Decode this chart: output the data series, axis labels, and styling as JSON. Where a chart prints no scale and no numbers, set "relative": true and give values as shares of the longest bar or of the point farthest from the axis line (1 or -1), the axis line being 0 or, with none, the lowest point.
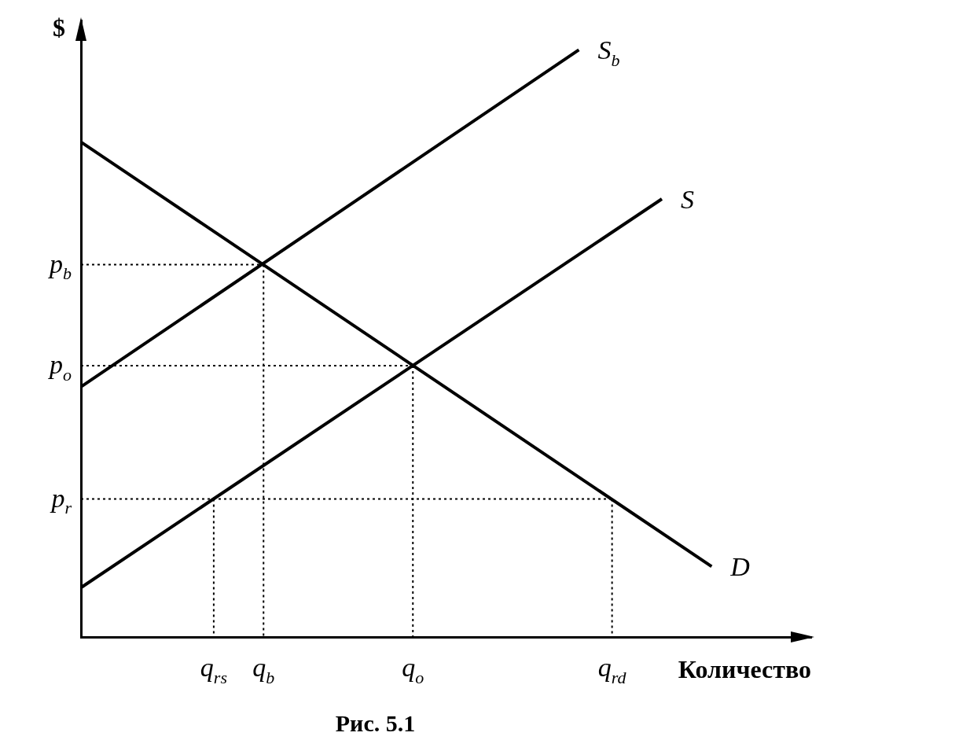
{
  "chart_data": {
    "type": "line",
    "relative": true,
    "xlabel": "Количество",
    "ylabel": "$",
    "legend": false,
    "grid": false,
    "marker": "none",
    "categories": [
      null,
      null,
      null,
      null,
      null,
      null,
      null,
      null,
      "q$_{rs}$",
      null,
      null,
      "q$_{b}$",
      null,
      null,
      null,
      null,
      null,
      null,
      null,
      null,
      "q$_{o}$",
      null,
      null,
      null,
      null,
      null,
      null,
      null,
      null,
      null,
      null,
      null,
      "q$_{rd}$",
      null,
      null,
      null,
      null,
      null,
      null,
      null,
      null,
      null,
      null,
      null,
      null
    ],
    "series": [
      {
        "name": "S$_{b}$",
        "color": "#000000",
        "line_style": "solid",
        "values": [
          0.426,
          null,
          null,
          null,
          null,
          null,
          null,
          null,
          null,
          null,
          null,
          null,
          null,
          null,
          null,
          null,
          null,
          null,
          null,
          null,
          null,
          null,
          null,
          null,
          null,
          null,
          null,
          null,
          null,
          null,
          1,
          null,
          null,
          null,
          null,
          null,
          null,
          null,
          null,
          null,
          null,
          null,
          null,
          null,
          null
        ]
      },
      {
        "name": "S",
        "color": "#000000",
        "line_style": "solid",
        "values": [
          0.084,
          null,
          null,
          null,
          null,
          null,
          null,
          null,
          null,
          null,
          null,
          null,
          null,
          null,
          null,
          null,
          null,
          null,
          null,
          null,
          null,
          null,
          null,
          null,
          null,
          null,
          null,
          null,
          null,
          null,
          null,
          null,
          null,
          null,
          null,
          0.746,
          null,
          null,
          null,
          null,
          null,
          null,
          null,
          null,
          null
        ]
      },
      {
        "name": "D",
        "color": "#000000",
        "line_style": "solid",
        "values": [
          0.843,
          null,
          null,
          null,
          null,
          null,
          null,
          null,
          null,
          null,
          null,
          null,
          null,
          null,
          null,
          null,
          null,
          null,
          null,
          null,
          null,
          null,
          null,
          null,
          null,
          null,
          null,
          null,
          null,
          null,
          null,
          null,
          null,
          null,
          null,
          null,
          null,
          null,
          0.12,
          null,
          null,
          null,
          null,
          null,
          null
        ]
      },
      {
        "name": "p$_{b}$",
        "color": "#000000",
        "line_style": "dotted",
        "values": [
          0.634,
          null,
          null,
          null,
          null,
          null,
          null,
          null,
          null,
          null,
          null,
          0.634,
          null,
          null,
          null,
          null,
          null,
          null,
          null,
          null,
          null,
          null,
          null,
          null,
          null,
          null,
          null,
          null,
          null,
          null,
          null,
          null,
          null,
          null,
          null,
          null,
          null,
          null,
          null,
          null,
          null,
          null,
          null,
          null,
          null
        ]
      },
      {
        "name": "p$_{o}$",
        "color": "#000000",
        "line_style": "dotted",
        "values": [
          0.462,
          null,
          null,
          null,
          null,
          null,
          null,
          null,
          null,
          null,
          null,
          null,
          null,
          null,
          null,
          null,
          null,
          null,
          null,
          null,
          0.462,
          null,
          null,
          null,
          null,
          null,
          null,
          null,
          null,
          null,
          null,
          null,
          null,
          null,
          null,
          null,
          null,
          null,
          null,
          null,
          null,
          null,
          null,
          null,
          null
        ]
      },
      {
        "name": "p$_{r}$",
        "color": "#000000",
        "line_style": "dotted",
        "values": [
          0.235,
          null,
          null,
          null,
          null,
          null,
          null,
          null,
          null,
          null,
          null,
          null,
          null,
          null,
          null,
          null,
          null,
          null,
          null,
          null,
          null,
          null,
          null,
          null,
          null,
          null,
          null,
          null,
          null,
          null,
          null,
          null,
          0.235,
          null,
          null,
          null,
          null,
          null,
          null,
          null,
          null,
          null,
          null,
          null,
          null
        ]
      },
      {
        "color": "#000000",
        "line_style": "dotted",
        "x": [
          "q$_{rs}$",
          "q$_{rs}$"
        ],
        "values": [
          0.235,
          0
        ]
      },
      {
        "color": "#000000",
        "line_style": "dotted",
        "x": [
          "q$_{b}$",
          "q$_{b}$"
        ],
        "values": [
          0.634,
          0
        ]
      },
      {
        "color": "#000000",
        "line_style": "dotted",
        "x": [
          "q$_{o}$",
          "q$_{o}$"
        ],
        "values": [
          0.462,
          0
        ]
      },
      {
        "color": "#000000",
        "line_style": "dotted",
        "x": [
          "q$_{rd}$",
          "q$_{rd}$"
        ],
        "values": [
          0.235,
          0
        ]
      }
    ],
    "annotations": [
      "Рис. 5.1"
    ]
  }
}
